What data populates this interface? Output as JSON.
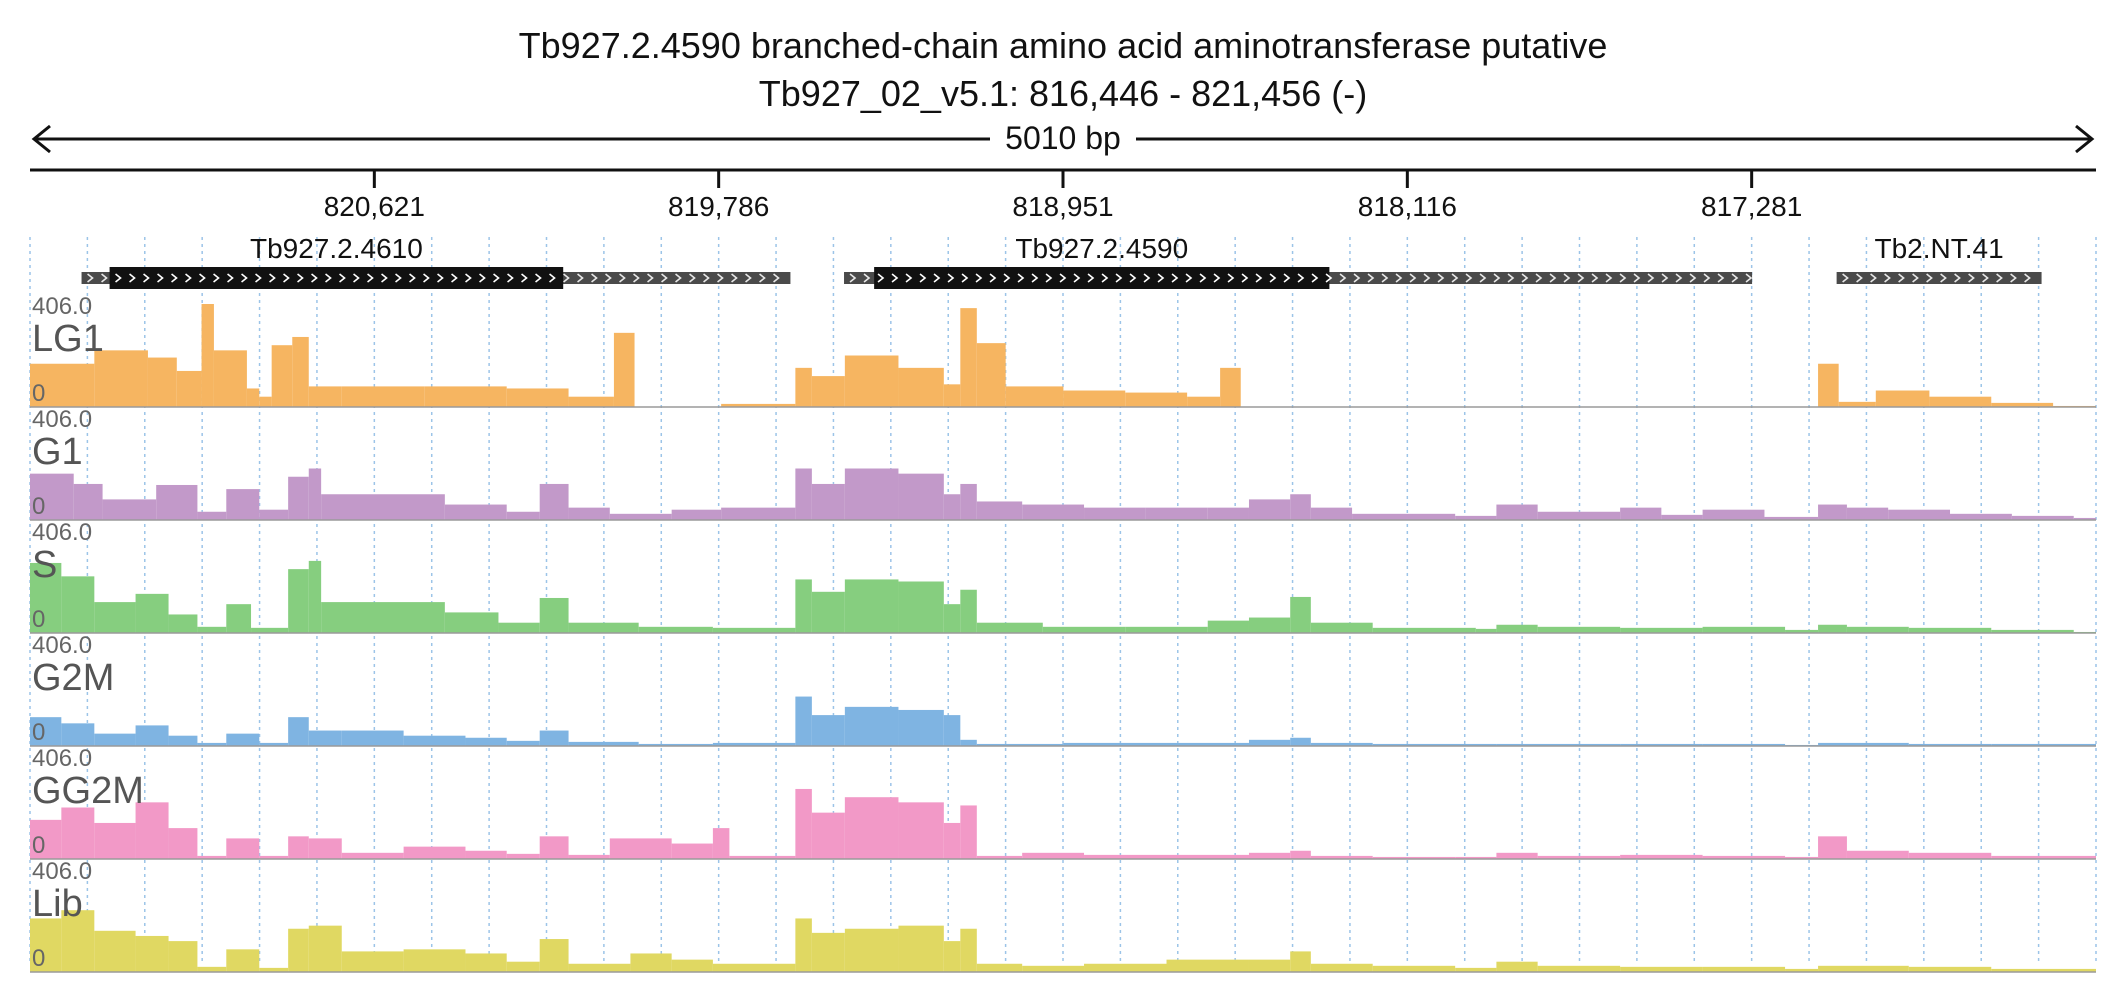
{
  "title": {
    "line1": "Tb927.2.4590  branched-chain amino acid aminotransferase  putative",
    "line2": "Tb927_02_v5.1: 816,446 - 821,456 (-)"
  },
  "ruler": {
    "span_label": "5010 bp",
    "ticks": [
      "820,621",
      "819,786",
      "818,951",
      "818,116",
      "817,281"
    ]
  },
  "chart_data": {
    "type": "area",
    "genome": {
      "chromosome": "Tb927_02_v5.1",
      "start": 816446,
      "end": 821456,
      "strand": "-",
      "span_bp": 5010
    },
    "x_axis": {
      "direction": "descending",
      "tick_positions": [
        820621,
        819786,
        818951,
        818116,
        817281
      ],
      "tick_labels": [
        "820,621",
        "819,786",
        "818,951",
        "818,116",
        "817,281"
      ]
    },
    "genes": [
      {
        "name": "Tb927.2.4610",
        "utr_span": [
          821331,
          819612
        ],
        "cds_span": [
          821263,
          820163
        ],
        "label_shown": true
      },
      {
        "name": "Tb927.2.4590",
        "utr_span": [
          819482,
          817280
        ],
        "cds_span": [
          819409,
          818305
        ],
        "label_shown": true
      },
      {
        "name": "Tb2.NT.41",
        "utr_span": [
          817075,
          816578
        ],
        "cds_span": null,
        "label_shown": true
      }
    ],
    "ylim": [
      0,
      406.0
    ],
    "y_max_label": "406.0",
    "y_min_label": "0",
    "tracks": [
      {
        "name": "LG1",
        "color": "#f6b561",
        "segments": [
          [
            821456,
            0.42
          ],
          [
            821300,
            0.55
          ],
          [
            821170,
            0.48
          ],
          [
            821100,
            0.35
          ],
          [
            821040,
            1.0
          ],
          [
            821010,
            0.55
          ],
          [
            820930,
            0.18
          ],
          [
            820900,
            0.1
          ],
          [
            820870,
            0.6
          ],
          [
            820820,
            0.68
          ],
          [
            820780,
            0.2
          ],
          [
            820700,
            0.2
          ],
          [
            820500,
            0.2
          ],
          [
            820300,
            0.18
          ],
          [
            820150,
            0.1
          ],
          [
            820040,
            0.72
          ],
          [
            819990,
            0.0
          ],
          [
            819780,
            0.03
          ],
          [
            819600,
            0.38
          ],
          [
            819560,
            0.3
          ],
          [
            819480,
            0.5
          ],
          [
            819350,
            0.38
          ],
          [
            819240,
            0.22
          ],
          [
            819200,
            0.96
          ],
          [
            819160,
            0.62
          ],
          [
            819090,
            0.2
          ],
          [
            818950,
            0.16
          ],
          [
            818800,
            0.14
          ],
          [
            818650,
            0.1
          ],
          [
            818570,
            0.38
          ],
          [
            818520,
            0.0
          ],
          [
            817120,
            0.42
          ],
          [
            817070,
            0.05
          ],
          [
            816980,
            0.16
          ],
          [
            816850,
            0.1
          ],
          [
            816700,
            0.04
          ],
          [
            816550,
            0.01
          ],
          [
            816446,
            0.0
          ]
        ]
      },
      {
        "name": "G1",
        "color": "#c299c9",
        "segments": [
          [
            821456,
            0.45
          ],
          [
            821350,
            0.35
          ],
          [
            821280,
            0.2
          ],
          [
            821150,
            0.34
          ],
          [
            821050,
            0.08
          ],
          [
            820980,
            0.3
          ],
          [
            820900,
            0.1
          ],
          [
            820830,
            0.42
          ],
          [
            820780,
            0.5
          ],
          [
            820750,
            0.25
          ],
          [
            820600,
            0.25
          ],
          [
            820450,
            0.15
          ],
          [
            820300,
            0.08
          ],
          [
            820220,
            0.35
          ],
          [
            820150,
            0.12
          ],
          [
            820050,
            0.06
          ],
          [
            819900,
            0.1
          ],
          [
            819780,
            0.12
          ],
          [
            819600,
            0.5
          ],
          [
            819560,
            0.35
          ],
          [
            819480,
            0.5
          ],
          [
            819350,
            0.45
          ],
          [
            819240,
            0.25
          ],
          [
            819200,
            0.35
          ],
          [
            819160,
            0.18
          ],
          [
            819050,
            0.15
          ],
          [
            818900,
            0.12
          ],
          [
            818750,
            0.12
          ],
          [
            818600,
            0.12
          ],
          [
            818500,
            0.2
          ],
          [
            818400,
            0.25
          ],
          [
            818350,
            0.12
          ],
          [
            818250,
            0.06
          ],
          [
            818000,
            0.04
          ],
          [
            817900,
            0.15
          ],
          [
            817800,
            0.08
          ],
          [
            817600,
            0.12
          ],
          [
            817500,
            0.05
          ],
          [
            817400,
            0.1
          ],
          [
            817250,
            0.03
          ],
          [
            817120,
            0.15
          ],
          [
            817050,
            0.12
          ],
          [
            816950,
            0.1
          ],
          [
            816800,
            0.06
          ],
          [
            816650,
            0.04
          ],
          [
            816500,
            0.02
          ],
          [
            816446,
            0.0
          ]
        ]
      },
      {
        "name": "S",
        "color": "#86ce7f",
        "segments": [
          [
            821456,
            0.68
          ],
          [
            821380,
            0.55
          ],
          [
            821300,
            0.3
          ],
          [
            821200,
            0.38
          ],
          [
            821120,
            0.18
          ],
          [
            821050,
            0.06
          ],
          [
            820980,
            0.28
          ],
          [
            820920,
            0.05
          ],
          [
            820830,
            0.62
          ],
          [
            820780,
            0.7
          ],
          [
            820750,
            0.3
          ],
          [
            820600,
            0.3
          ],
          [
            820450,
            0.2
          ],
          [
            820320,
            0.1
          ],
          [
            820220,
            0.34
          ],
          [
            820150,
            0.1
          ],
          [
            819980,
            0.06
          ],
          [
            819800,
            0.05
          ],
          [
            819600,
            0.52
          ],
          [
            819560,
            0.4
          ],
          [
            819480,
            0.52
          ],
          [
            819350,
            0.5
          ],
          [
            819240,
            0.28
          ],
          [
            819200,
            0.42
          ],
          [
            819160,
            0.1
          ],
          [
            819000,
            0.06
          ],
          [
            818800,
            0.06
          ],
          [
            818600,
            0.12
          ],
          [
            818500,
            0.15
          ],
          [
            818400,
            0.35
          ],
          [
            818350,
            0.1
          ],
          [
            818200,
            0.05
          ],
          [
            817950,
            0.04
          ],
          [
            817900,
            0.08
          ],
          [
            817800,
            0.06
          ],
          [
            817600,
            0.05
          ],
          [
            817400,
            0.06
          ],
          [
            817200,
            0.03
          ],
          [
            817120,
            0.08
          ],
          [
            817050,
            0.06
          ],
          [
            816900,
            0.05
          ],
          [
            816700,
            0.03
          ],
          [
            816500,
            0.01
          ],
          [
            816446,
            0.0
          ]
        ]
      },
      {
        "name": "G2M",
        "color": "#7fb4e2",
        "segments": [
          [
            821456,
            0.28
          ],
          [
            821380,
            0.22
          ],
          [
            821300,
            0.12
          ],
          [
            821200,
            0.2
          ],
          [
            821120,
            0.1
          ],
          [
            821050,
            0.03
          ],
          [
            820980,
            0.12
          ],
          [
            820900,
            0.03
          ],
          [
            820830,
            0.28
          ],
          [
            820780,
            0.15
          ],
          [
            820700,
            0.15
          ],
          [
            820550,
            0.1
          ],
          [
            820400,
            0.08
          ],
          [
            820300,
            0.05
          ],
          [
            820220,
            0.15
          ],
          [
            820150,
            0.04
          ],
          [
            819980,
            0.02
          ],
          [
            819800,
            0.03
          ],
          [
            819600,
            0.48
          ],
          [
            819560,
            0.3
          ],
          [
            819480,
            0.38
          ],
          [
            819350,
            0.35
          ],
          [
            819240,
            0.3
          ],
          [
            819200,
            0.06
          ],
          [
            819160,
            0.02
          ],
          [
            818950,
            0.03
          ],
          [
            818700,
            0.03
          ],
          [
            818500,
            0.06
          ],
          [
            818400,
            0.08
          ],
          [
            818350,
            0.03
          ],
          [
            818200,
            0.02
          ],
          [
            817900,
            0.02
          ],
          [
            817600,
            0.02
          ],
          [
            817400,
            0.02
          ],
          [
            817200,
            0.01
          ],
          [
            817120,
            0.03
          ],
          [
            816900,
            0.02
          ],
          [
            816700,
            0.02
          ],
          [
            816446,
            0.0
          ]
        ]
      },
      {
        "name": "GG2M",
        "color": "#f299c7",
        "segments": [
          [
            821456,
            0.38
          ],
          [
            821380,
            0.5
          ],
          [
            821300,
            0.35
          ],
          [
            821200,
            0.55
          ],
          [
            821120,
            0.3
          ],
          [
            821050,
            0.03
          ],
          [
            820980,
            0.2
          ],
          [
            820900,
            0.03
          ],
          [
            820830,
            0.22
          ],
          [
            820780,
            0.2
          ],
          [
            820700,
            0.06
          ],
          [
            820550,
            0.12
          ],
          [
            820400,
            0.08
          ],
          [
            820300,
            0.05
          ],
          [
            820220,
            0.22
          ],
          [
            820150,
            0.04
          ],
          [
            820050,
            0.2
          ],
          [
            819900,
            0.15
          ],
          [
            819800,
            0.3
          ],
          [
            819760,
            0.03
          ],
          [
            819600,
            0.68
          ],
          [
            819560,
            0.45
          ],
          [
            819480,
            0.6
          ],
          [
            819350,
            0.55
          ],
          [
            819240,
            0.35
          ],
          [
            819200,
            0.52
          ],
          [
            819160,
            0.03
          ],
          [
            819050,
            0.06
          ],
          [
            818900,
            0.04
          ],
          [
            818700,
            0.04
          ],
          [
            818500,
            0.06
          ],
          [
            818400,
            0.08
          ],
          [
            818350,
            0.03
          ],
          [
            818200,
            0.02
          ],
          [
            818000,
            0.02
          ],
          [
            817900,
            0.06
          ],
          [
            817800,
            0.03
          ],
          [
            817600,
            0.04
          ],
          [
            817400,
            0.03
          ],
          [
            817200,
            0.02
          ],
          [
            817120,
            0.22
          ],
          [
            817050,
            0.08
          ],
          [
            816900,
            0.06
          ],
          [
            816700,
            0.03
          ],
          [
            816446,
            0.0
          ]
        ]
      },
      {
        "name": "Lib",
        "color": "#e0d862",
        "segments": [
          [
            821456,
            0.52
          ],
          [
            821380,
            0.6
          ],
          [
            821300,
            0.4
          ],
          [
            821200,
            0.35
          ],
          [
            821120,
            0.3
          ],
          [
            821050,
            0.05
          ],
          [
            820980,
            0.22
          ],
          [
            820900,
            0.04
          ],
          [
            820830,
            0.42
          ],
          [
            820780,
            0.45
          ],
          [
            820700,
            0.2
          ],
          [
            820550,
            0.22
          ],
          [
            820400,
            0.18
          ],
          [
            820300,
            0.1
          ],
          [
            820220,
            0.32
          ],
          [
            820150,
            0.08
          ],
          [
            820000,
            0.18
          ],
          [
            819900,
            0.12
          ],
          [
            819800,
            0.08
          ],
          [
            819600,
            0.52
          ],
          [
            819560,
            0.38
          ],
          [
            819480,
            0.42
          ],
          [
            819350,
            0.45
          ],
          [
            819240,
            0.3
          ],
          [
            819200,
            0.42
          ],
          [
            819160,
            0.08
          ],
          [
            819050,
            0.06
          ],
          [
            818900,
            0.08
          ],
          [
            818700,
            0.12
          ],
          [
            818500,
            0.12
          ],
          [
            818400,
            0.2
          ],
          [
            818350,
            0.08
          ],
          [
            818200,
            0.06
          ],
          [
            818000,
            0.04
          ],
          [
            817900,
            0.1
          ],
          [
            817800,
            0.06
          ],
          [
            817600,
            0.05
          ],
          [
            817400,
            0.05
          ],
          [
            817200,
            0.03
          ],
          [
            817120,
            0.06
          ],
          [
            816900,
            0.05
          ],
          [
            816700,
            0.03
          ],
          [
            816446,
            0.0
          ]
        ]
      }
    ]
  }
}
